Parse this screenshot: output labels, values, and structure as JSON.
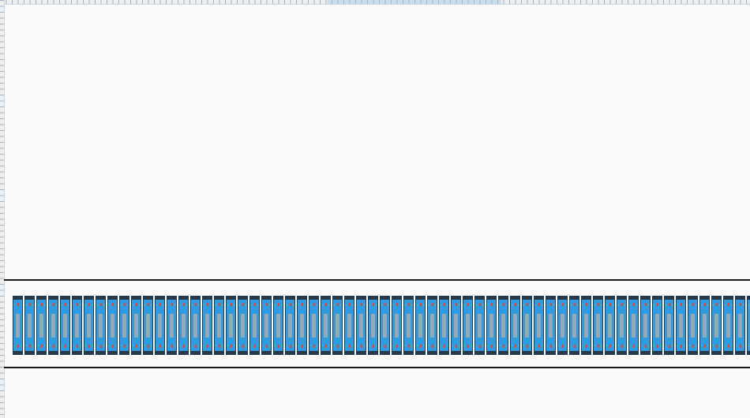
{
  "canvas": {
    "background": "#fafafa"
  },
  "rack_units": {
    "count": 63,
    "body_color": "#2f9be0",
    "frame_color": "#27394b",
    "panel_color": "#9aa7ad",
    "led_color": "#ff3a2a",
    "icon": "server-blade-icon"
  },
  "rulers": {
    "horizontal": true,
    "vertical": true
  }
}
